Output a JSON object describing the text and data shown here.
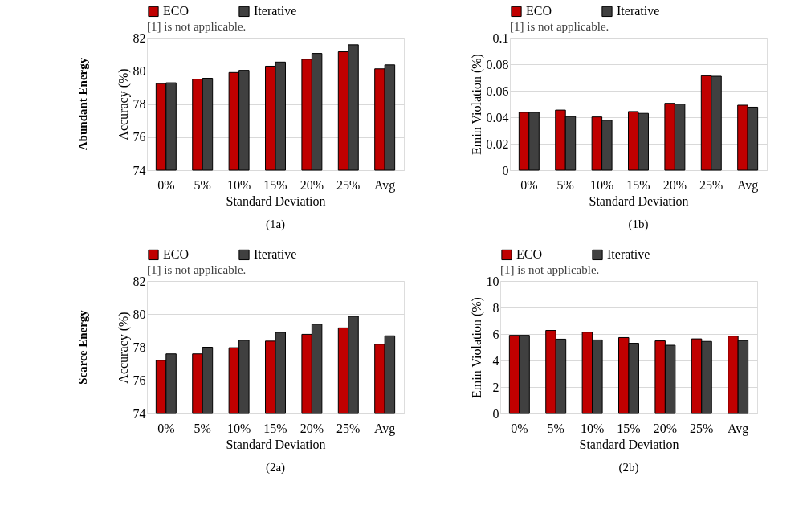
{
  "chart_data": [
    {
      "type": "bar",
      "title": "(1a)",
      "xlabel": "Standard Deviation",
      "ylabel": "Accuracy (%)",
      "categories": [
        "0%",
        "5%",
        "10%",
        "15%",
        "20%",
        "25%",
        "Avg"
      ],
      "series": [
        {
          "name": "ECO",
          "color": "#c00000",
          "values": [
            79.23,
            79.5,
            79.9,
            80.28,
            80.7,
            81.15,
            80.12
          ]
        },
        {
          "name": "Iterative",
          "color": "#404040",
          "values": [
            79.28,
            79.55,
            80.03,
            80.53,
            81.05,
            81.57,
            80.36
          ]
        }
      ],
      "ylim": [
        74,
        82
      ],
      "yticks": [
        74,
        76,
        78,
        80,
        82
      ],
      "grid": "y",
      "legend": "top",
      "annotations": [
        "[1] is not applicable.",
        "Abundant Energy"
      ]
    },
    {
      "type": "bar",
      "title": "(1b)",
      "xlabel": "Standard Deviation",
      "ylabel": "Emin Violation (%)",
      "categories": [
        "0%",
        "5%",
        "10%",
        "15%",
        "20%",
        "25%",
        "Avg"
      ],
      "series": [
        {
          "name": "ECO",
          "color": "#c00000",
          "values": [
            0.0437,
            0.0454,
            0.0402,
            0.0443,
            0.0505,
            0.0713,
            0.0491
          ]
        },
        {
          "name": "Iterative",
          "color": "#404040",
          "values": [
            0.0437,
            0.0406,
            0.0377,
            0.0429,
            0.0499,
            0.0709,
            0.0476
          ]
        }
      ],
      "ylim": [
        0,
        0.1
      ],
      "yticks": [
        0,
        0.02,
        0.04,
        0.06,
        0.08,
        0.1
      ],
      "grid": "y",
      "legend": "top",
      "annotations": [
        "[1] is not applicable."
      ]
    },
    {
      "type": "bar",
      "title": "(2a)",
      "xlabel": "Standard Deviation",
      "ylabel": "Accuracy (%)",
      "categories": [
        "0%",
        "5%",
        "10%",
        "15%",
        "20%",
        "25%",
        "Avg"
      ],
      "series": [
        {
          "name": "ECO",
          "color": "#c00000",
          "values": [
            77.21,
            77.6,
            77.97,
            78.37,
            78.78,
            79.17,
            78.18
          ]
        },
        {
          "name": "Iterative",
          "color": "#404040",
          "values": [
            77.6,
            78.0,
            78.42,
            78.9,
            79.39,
            79.87,
            78.69
          ]
        }
      ],
      "ylim": [
        74,
        82
      ],
      "yticks": [
        74,
        76,
        78,
        80,
        82
      ],
      "grid": "y",
      "legend": "top",
      "annotations": [
        "[1] is not applicable.",
        "Scarce Energy"
      ]
    },
    {
      "type": "bar",
      "title": "(2b)",
      "xlabel": "Standard Deviation",
      "ylabel": "Emin Violation (%)",
      "categories": [
        "0%",
        "5%",
        "10%",
        "15%",
        "20%",
        "25%",
        "Avg"
      ],
      "series": [
        {
          "name": "ECO",
          "color": "#c00000",
          "values": [
            5.9,
            6.27,
            6.14,
            5.73,
            5.48,
            5.63,
            5.84
          ]
        },
        {
          "name": "Iterative",
          "color": "#404040",
          "values": [
            5.9,
            5.61,
            5.55,
            5.3,
            5.15,
            5.44,
            5.5
          ]
        }
      ],
      "ylim": [
        0,
        10
      ],
      "yticks": [
        0,
        2,
        4,
        6,
        8,
        10
      ],
      "grid": "y",
      "legend": "top",
      "annotations": [
        "[1] is not applicable."
      ]
    }
  ]
}
